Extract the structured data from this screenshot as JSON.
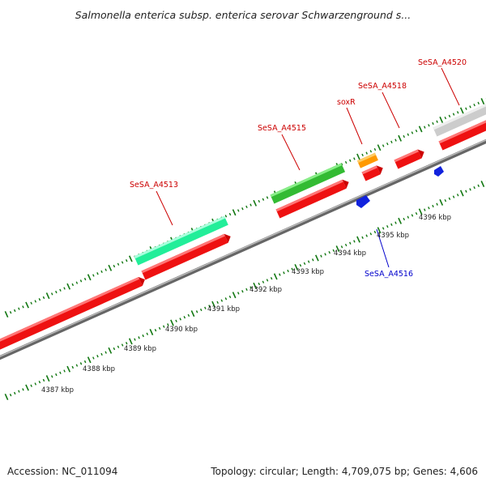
{
  "title": "Salmonella enterica subsp. enterica serovar Schwarzenground s...",
  "footer": {
    "accession": "Accession: NC_011094",
    "summary": "Topology: circular; Length: 4,709,075 bp; Genes: 4,606"
  },
  "scale_labels": [
    "4387 kbp",
    "4388 kbp",
    "4389 kbp",
    "4390 kbp",
    "4391 kbp",
    "4392 kbp",
    "4393 kbp",
    "4394 kbp",
    "4395 kbp",
    "4396 kbp"
  ],
  "gene_labels": [
    {
      "text": "SeSA_A4513",
      "color": "#cc0000"
    },
    {
      "text": "SeSA_A4515",
      "color": "#cc0000"
    },
    {
      "text": "soxR",
      "color": "#cc0000"
    },
    {
      "text": "SeSA_A4518",
      "color": "#cc0000"
    },
    {
      "text": "SeSA_A4520",
      "color": "#cc0000"
    },
    {
      "text": "SeSA_A4516",
      "color": "#0000cc"
    }
  ],
  "colors": {
    "forward_cds": "#ee1111",
    "green_gene": "#33bb33",
    "teal_gene": "#22ee99",
    "orange_gene": "#ff9900",
    "blue_gene": "#1122dd",
    "gray_gene": "#cccccc",
    "backbone": "#888888",
    "tick": "#117711"
  }
}
